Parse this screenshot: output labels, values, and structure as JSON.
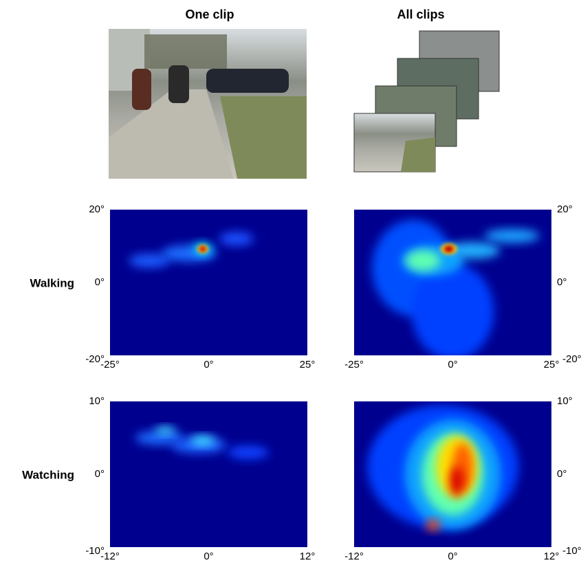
{
  "columns": [
    "One clip",
    "All clips"
  ],
  "rows": [
    {
      "label": "Walking",
      "x_ticks": [
        "-25°",
        "0°",
        "25°"
      ],
      "y_ticks": [
        "20°",
        "0°",
        "-20°"
      ]
    },
    {
      "label": "Watching",
      "x_ticks": [
        "-12°",
        "0°",
        "12°"
      ],
      "y_ticks": [
        "10°",
        "0°",
        "-10°"
      ]
    }
  ]
}
